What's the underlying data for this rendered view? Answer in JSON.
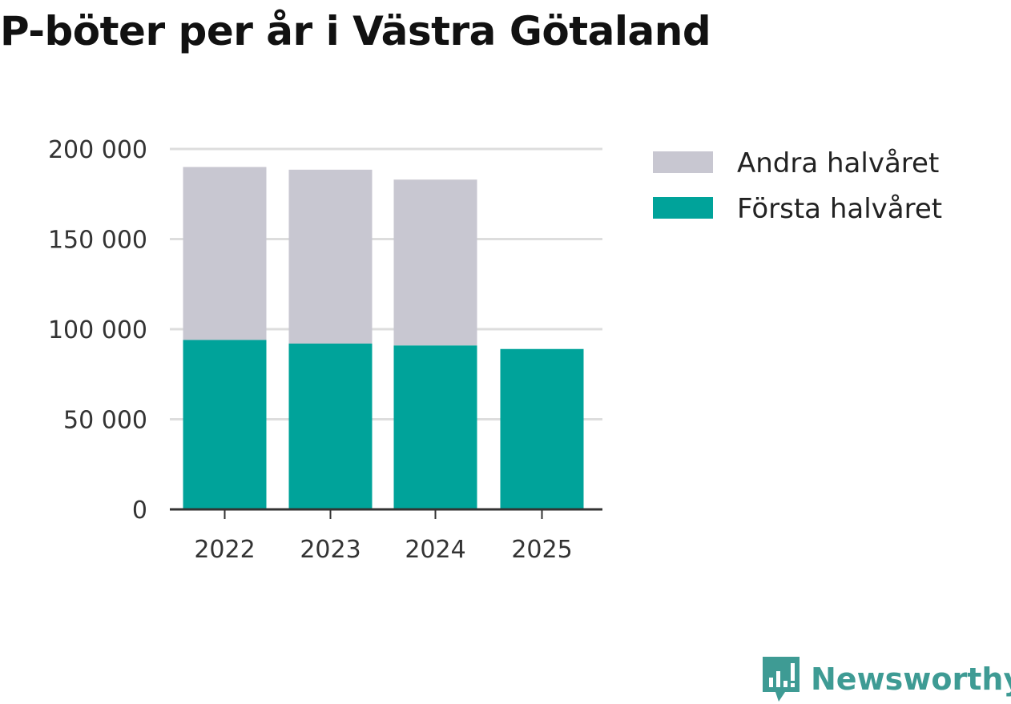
{
  "title": "P-böter per år i Västra Götaland",
  "colors": {
    "second_half": "#c8c7d1",
    "first_half": "#00a39a",
    "grid": "#dddddd",
    "axis": "#333333",
    "brand": "#3e9b94"
  },
  "chart_data": {
    "type": "bar",
    "stacked": true,
    "title": "P-böter per år i Västra Götaland",
    "categories": [
      "2022",
      "2023",
      "2024",
      "2025"
    ],
    "series": [
      {
        "name": "Första halvåret",
        "values": [
          94000,
          92000,
          91000,
          89000
        ]
      },
      {
        "name": "Andra halvåret",
        "values": [
          96000,
          96500,
          92000,
          0
        ]
      }
    ],
    "yticks": [
      0,
      50000,
      100000,
      150000,
      200000
    ],
    "ytick_labels": [
      "0",
      "50 000",
      "100 000",
      "150 000",
      "200 000"
    ],
    "ylim": [
      0,
      200000
    ],
    "xlabel": "",
    "ylabel": "",
    "grid": true,
    "legend": "right",
    "legend_entries": [
      "Andra halvåret",
      "Första halvåret"
    ]
  },
  "brand": {
    "name": "Newsworthy",
    "icon": "newsworthy-logo-icon"
  }
}
